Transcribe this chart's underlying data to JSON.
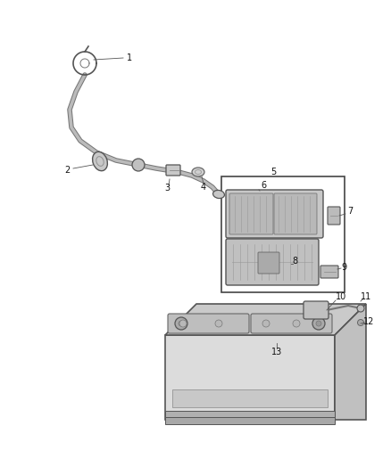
{
  "bg_color": "#ffffff",
  "fig_w": 4.38,
  "fig_h": 5.33,
  "dpi": 100,
  "wire_dark": "#666666",
  "wire_light": "#999999",
  "part_ec": "#555555",
  "part_fc": "#cccccc",
  "box_ec": "#444444",
  "label_fs": 7,
  "label_color": "#111111"
}
